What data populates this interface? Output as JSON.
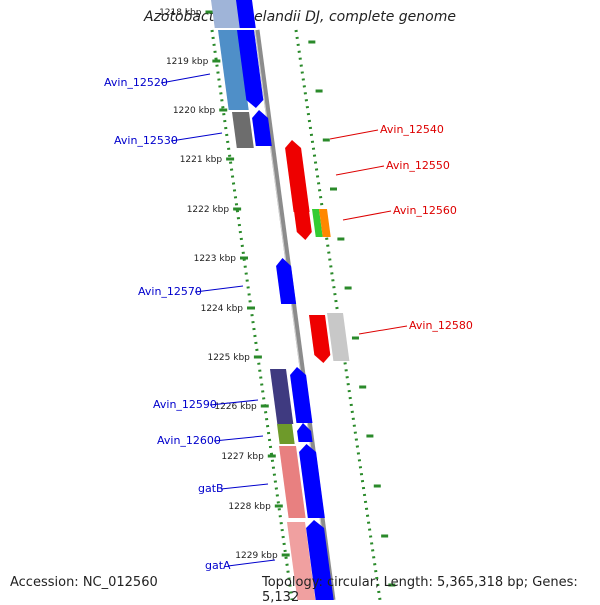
{
  "title": "Azotobacter vinelandii DJ, complete genome",
  "footer": {
    "accession": "Accession: NC_012560",
    "topology": "Topology: circular; Length: 5,365,318 bp; Genes: 5,132"
  },
  "colors": {
    "backbone": "#8c8c8c",
    "forward_label": "#0000cc",
    "reverse_label": "#dd0000",
    "dotted_track": "#2a8a2a",
    "cds": "#0000ff"
  },
  "scale_ticks": [
    "1218 kbp",
    "1219 kbp",
    "1220 kbp",
    "1221 kbp",
    "1222 kbp",
    "1223 kbp",
    "1224 kbp",
    "1225 kbp",
    "1226 kbp",
    "1227 kbp",
    "1228 kbp",
    "1229 kbp"
  ],
  "genes_forward": [
    {
      "label": "Avin_12520",
      "color_outer": "#4f8fc8"
    },
    {
      "label": "Avin_12530",
      "color_outer": "#6d6d6d"
    },
    {
      "label": "Avin_12570",
      "color_outer": null
    },
    {
      "label": "Avin_12590",
      "color_outer": "#3f3a80"
    },
    {
      "label": "Avin_12600",
      "color_outer": "#6e9a2a"
    },
    {
      "label": "gatB",
      "color_outer": "#e88080"
    },
    {
      "label": "gatA",
      "color_outer": "#f0a0a0"
    }
  ],
  "genes_reverse": [
    {
      "label": "Avin_12540",
      "color": "#ee0000"
    },
    {
      "label": "Avin_12550",
      "color": "#ee0000"
    },
    {
      "label": "Avin_12560",
      "color": "#ee0000",
      "extra_colors": [
        "#33cc33",
        "#ff8800"
      ]
    },
    {
      "label": "Avin_12580",
      "color": "#ee0000",
      "extra_colors": [
        "#c8c8c8"
      ]
    }
  ]
}
